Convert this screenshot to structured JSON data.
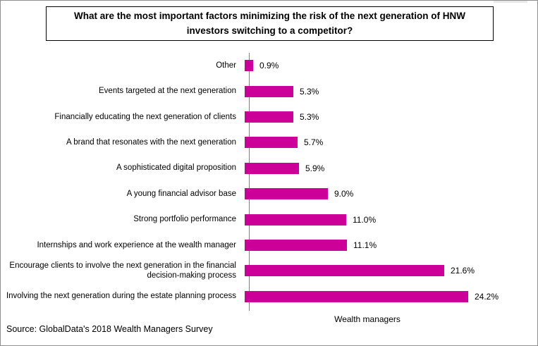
{
  "card": {
    "source_note": "Source: GlobalData's 2018 Wealth Managers Survey"
  },
  "chart_data": {
    "type": "bar",
    "orientation": "horizontal",
    "title": "What are the most important factors minimizing the risk of the next generation of HNW investors switching to a competitor?",
    "xlabel": "Wealth managers",
    "ylabel": "",
    "xlim": [
      0,
      26
    ],
    "grid": false,
    "legend": "none",
    "bar_color": "#CC0099",
    "axis_color": "#808080",
    "categories": [
      "Other",
      "Events targeted at the next generation",
      "Financially educating the next generation of clients",
      "A brand that resonates with the next generation",
      "A sophisticated digital proposition",
      "A young financial advisor base",
      "Strong portfolio performance",
      "Internships and work experience at the wealth manager",
      "Encourage clients to involve the next generation in the financial decision-making process",
      "Involving the next generation during the estate planning process"
    ],
    "values": [
      0.9,
      5.3,
      5.3,
      5.7,
      5.9,
      9.0,
      11.0,
      11.1,
      21.6,
      24.2
    ],
    "value_labels": [
      "0.9%",
      "5.3%",
      "5.3%",
      "5.7%",
      "5.9%",
      "9.0%",
      "11.0%",
      "11.1%",
      "21.6%",
      "24.2%"
    ]
  }
}
